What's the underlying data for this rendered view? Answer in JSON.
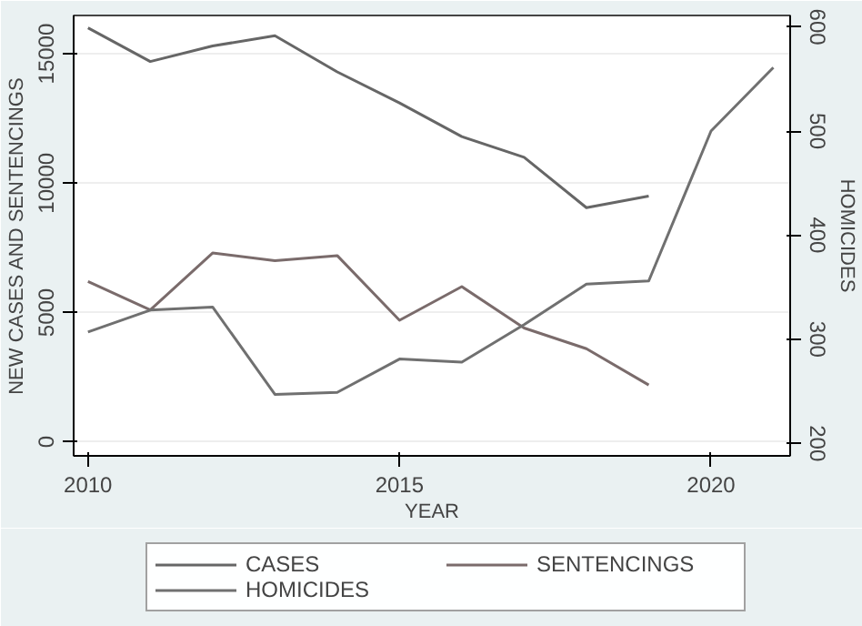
{
  "chart_data": {
    "type": "line",
    "xlabel": "YEAR",
    "ylabel": "NEW CASES AND SENTENCINGS",
    "y2label": "HOMICIDES",
    "x": [
      2010,
      2011,
      2012,
      2013,
      2014,
      2015,
      2016,
      2017,
      2018,
      2019
    ],
    "series": [
      {
        "name": "CASES",
        "color": "#666666",
        "values": [
          16000,
          14700,
          15300,
          15700,
          14300,
          13100,
          11800,
          11000,
          9050,
          9500
        ]
      },
      {
        "name": "SENTENCINGS",
        "color": "#7a6b6b",
        "values": [
          6200,
          5100,
          7300,
          7000,
          7200,
          4700,
          6000,
          4400,
          3600,
          2200
        ]
      },
      {
        "name": "HOMICIDES",
        "color": "#707070",
        "axis": "y2",
        "x": [
          2010,
          2011,
          2012,
          2013,
          2014,
          2015,
          2016,
          2017,
          2018,
          2019,
          2020,
          2021
        ],
        "values": [
          307,
          328,
          331,
          247,
          249,
          281,
          278,
          314,
          353,
          356,
          500,
          561
        ]
      }
    ],
    "xlim": [
      2009.77,
      2021.27
    ],
    "xticks": [
      2010,
      2015,
      2020
    ],
    "ylim": [
      -540,
      16480
    ],
    "yticks": [
      0,
      5000,
      10000,
      15000
    ],
    "y2lim": [
      188,
      611
    ],
    "y2ticks": [
      200,
      300,
      400,
      500,
      600
    ],
    "grid": "y",
    "legend": "bottom",
    "marker": "none",
    "line_style": "solid"
  }
}
